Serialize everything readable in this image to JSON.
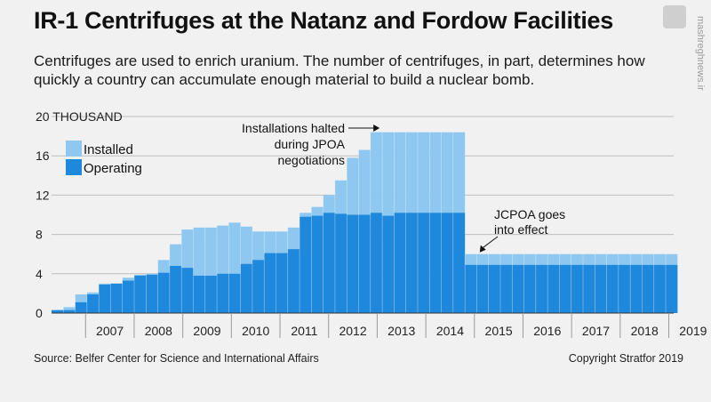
{
  "header": {
    "title": "IR-1 Centrifuges at the Natanz and Fordow Facilities",
    "subtitle": "Centrifuges are used to enrich uranium. The number of centrifuges, in part, determines how quickly a country can accumulate enough material to build a nuclear bomb."
  },
  "footer": {
    "source": "Source: Belfer Center for Science and International Affairs",
    "copyright": "Copyright Stratfor 2019"
  },
  "watermark": {
    "logo_text": "",
    "side_text": "mashreghnews.ir"
  },
  "colors": {
    "installed": "#8ec8f0",
    "operating": "#1e88dd",
    "background": "#f1f1f1",
    "grid": "#bdbdbd"
  },
  "chart_data": {
    "type": "bar",
    "stacked": "overlay",
    "ylabel": "",
    "y_unit_label": "THOUSAND",
    "ylim": [
      0,
      20
    ],
    "yticks": [
      0,
      4,
      8,
      12,
      16,
      20
    ],
    "ytick_labels": [
      "0",
      "4",
      "8",
      "12",
      "16",
      "20"
    ],
    "xlim": [
      2006.3,
      2019.1
    ],
    "x_tick_labels": [
      "2007",
      "2008",
      "2009",
      "2010",
      "2011",
      "2012",
      "2013",
      "2014",
      "2015",
      "2016",
      "2017",
      "2018",
      "2019"
    ],
    "grid": true,
    "legend": {
      "position": "top-left",
      "entries": [
        "Installed",
        "Operating"
      ]
    },
    "series": [
      {
        "name": "Installed",
        "values": [
          0.3,
          0.6,
          1.9,
          2.1,
          3.0,
          3.0,
          3.6,
          3.9,
          4.0,
          5.4,
          7.0,
          8.5,
          8.7,
          8.7,
          8.9,
          9.2,
          8.8,
          8.3,
          8.3,
          8.3,
          8.7,
          10.2,
          10.8,
          12.0,
          13.5,
          15.8,
          16.6,
          18.4,
          18.4,
          18.4,
          18.4,
          18.4,
          18.4,
          18.4,
          18.4,
          6.0,
          6.0,
          6.0,
          6.0,
          6.0,
          6.0,
          6.0,
          6.0,
          6.0,
          6.0,
          6.0,
          6.0,
          6.0,
          6.0,
          6.0,
          6.0,
          6.0,
          6.0
        ]
      },
      {
        "name": "Operating",
        "values": [
          0.3,
          0.3,
          1.1,
          1.9,
          2.9,
          3.0,
          3.3,
          3.8,
          3.9,
          4.1,
          4.8,
          4.6,
          3.8,
          3.8,
          4.0,
          4.0,
          5.0,
          5.4,
          6.1,
          6.1,
          6.5,
          9.8,
          9.9,
          10.2,
          10.1,
          10.0,
          10.0,
          10.2,
          9.9,
          10.2,
          10.2,
          10.2,
          10.2,
          10.2,
          10.2,
          4.9,
          4.9,
          4.9,
          4.9,
          4.9,
          4.9,
          4.9,
          4.9,
          4.9,
          4.9,
          4.9,
          4.9,
          4.9,
          4.9,
          4.9,
          4.9,
          4.9,
          4.9
        ]
      }
    ],
    "x_start": 2006.3,
    "x_step": 0.243,
    "annotations": [
      {
        "lines": [
          "Installations halted",
          "during JPOA",
          "negotiations"
        ],
        "points_to": [
          2013.05,
          18.4
        ]
      },
      {
        "lines": [
          "JCPOA goes",
          "into effect"
        ],
        "points_to": [
          2015.0,
          6.0
        ]
      }
    ]
  }
}
